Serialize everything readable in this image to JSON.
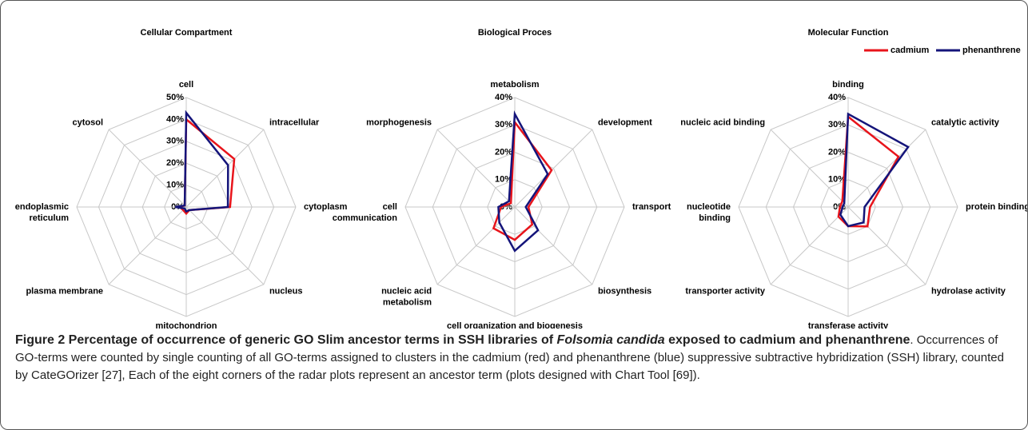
{
  "legend": [
    {
      "name": "cadmium",
      "color": "#e8141b"
    },
    {
      "name": "phenanthrene",
      "color": "#14147a"
    }
  ],
  "chart_data": [
    {
      "type": "radar",
      "title": "Cellular Compartment",
      "categories": [
        "cell",
        "intracellular",
        "cytoplasm",
        "nucleus",
        "mitochondrion",
        "plasma membrane",
        "endoplasmic\nreticulum",
        "cytosol"
      ],
      "series": [
        {
          "values": [
            40,
            31,
            20,
            2,
            3,
            2,
            3,
            1
          ]
        },
        {
          "values": [
            43,
            27,
            19,
            2,
            2,
            1,
            5,
            1
          ]
        }
      ],
      "ylim": [
        0,
        50
      ],
      "yticks": [
        {
          "value": 0,
          "label": "0%"
        },
        {
          "value": 10,
          "label": "10%"
        },
        {
          "value": 20,
          "label": "20%"
        },
        {
          "value": 30,
          "label": "30%"
        },
        {
          "value": 40,
          "label": "40%"
        },
        {
          "value": 50,
          "label": "50%"
        }
      ]
    },
    {
      "type": "radar",
      "title": "Biological Proces",
      "categories": [
        "metabolism",
        "development",
        "transport",
        "biosynthesis",
        "cell organization and biogenesis",
        "nucleic acid\nmetabolism",
        "cell\ncommunication",
        "morphogenesis"
      ],
      "series": [
        {
          "values": [
            31,
            19,
            5,
            9,
            12,
            11,
            5,
            2
          ]
        },
        {
          "values": [
            34,
            17,
            4,
            12,
            16,
            8,
            6,
            3
          ]
        }
      ],
      "ylim": [
        0,
        40
      ],
      "yticks": [
        {
          "value": 0,
          "label": "0%"
        },
        {
          "value": 10,
          "label": "10%"
        },
        {
          "value": 20,
          "label": "20%"
        },
        {
          "value": 30,
          "label": "30%"
        },
        {
          "value": 40,
          "label": "40%"
        }
      ]
    },
    {
      "type": "radar",
      "title": "Molecular Function",
      "legend": true,
      "categories": [
        "binding",
        "catalytic activity",
        "protein binding",
        "hydrolase activity",
        "transferase activity",
        "transporter activity",
        "nucleotide\nbinding",
        "nucleic acid binding"
      ],
      "series": [
        {
          "values": [
            33,
            26,
            8,
            10,
            7,
            5,
            3,
            3
          ]
        },
        {
          "values": [
            34,
            31,
            6,
            8,
            7,
            4,
            2,
            2
          ]
        }
      ],
      "ylim": [
        0,
        40
      ],
      "yticks": [
        {
          "value": 0,
          "label": "0%"
        },
        {
          "value": 10,
          "label": "10%"
        },
        {
          "value": 20,
          "label": "20%"
        },
        {
          "value": 30,
          "label": "30%"
        },
        {
          "value": 40,
          "label": "40%"
        }
      ]
    }
  ],
  "caption": {
    "bold_1": "Figure 2 Percentage of occurrence of generic GO Slim ancestor terms in SSH libraries of ",
    "italic": "Folsomia candida",
    "bold_2": " exposed to cadmium and phenanthrene",
    "text": ". Occurrences of GO-terms were counted by single counting of all GO-terms assigned to clusters in the cadmium (red) and phenanthrene (blue) suppressive subtractive hybridization (SSH) library, counted by CateGOrizer [27], Each of the eight corners of the radar plots represent an ancestor term (plots designed with Chart Tool [69])."
  }
}
